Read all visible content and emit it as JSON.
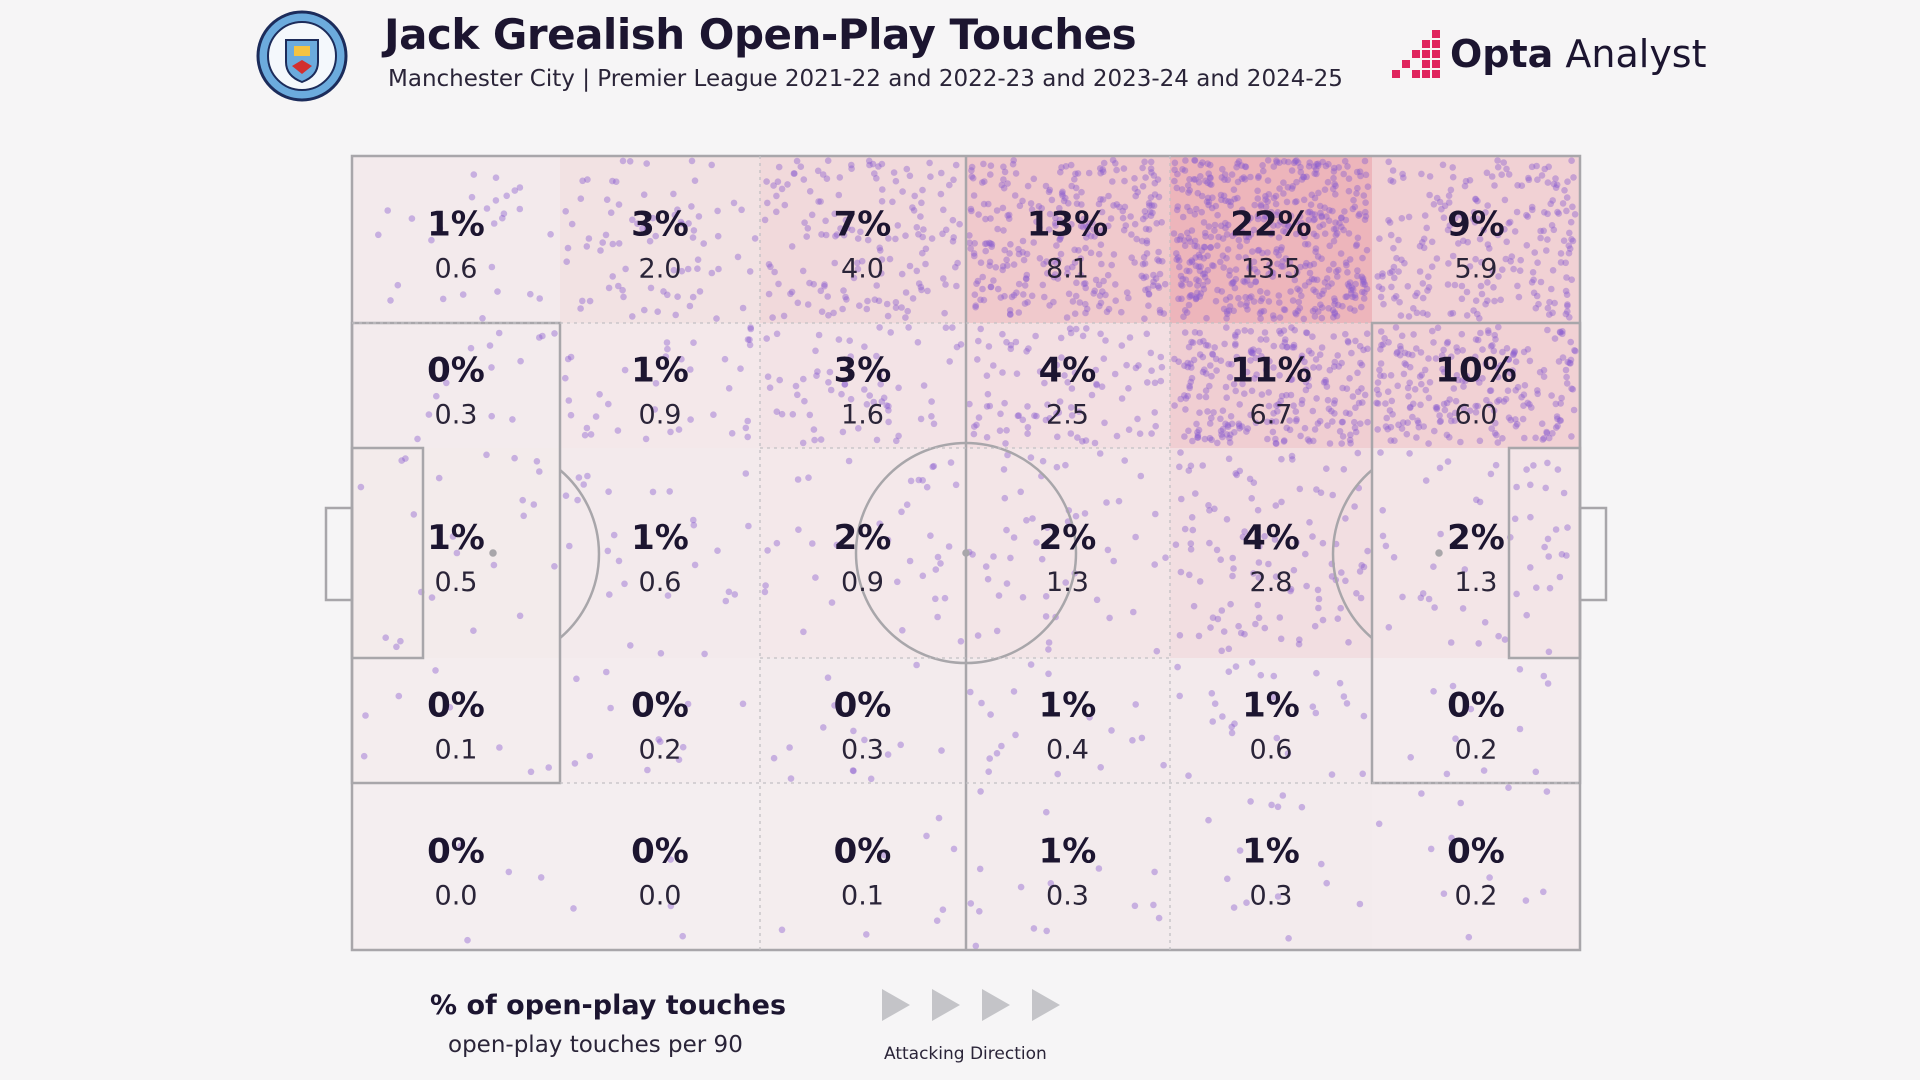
{
  "header": {
    "title": "Jack Grealish Open-Play Touches",
    "subtitle": "Manchester City | Premier League 2021-22 and 2022-23 and 2023-24 and 2024-25",
    "crest_text": "MANCHESTER CITY",
    "brand_bold": "Opta",
    "brand_light": " Analyst"
  },
  "legend": {
    "pct_label": "% of open-play touches",
    "per90_label": "open-play touches per 90",
    "direction_label": "Attacking Direction"
  },
  "colors": {
    "background": "#f6f5f6",
    "pitch_lines": "#a8a6aa",
    "dots": "#8a5cd0",
    "heat_high": "#e88a92",
    "text": "#1c1530",
    "brand_accent": "#e0245e"
  },
  "chart_data": {
    "type": "heatmap",
    "rows_top_to_bottom": 5,
    "cols_left_to_right": 6,
    "attacking_direction": "left-to-right",
    "cells": [
      [
        {
          "pct": "1%",
          "p90": "0.6"
        },
        {
          "pct": "3%",
          "p90": "2.0"
        },
        {
          "pct": "7%",
          "p90": "4.0"
        },
        {
          "pct": "13%",
          "p90": "8.1"
        },
        {
          "pct": "22%",
          "p90": "13.5"
        },
        {
          "pct": "9%",
          "p90": "5.9"
        }
      ],
      [
        {
          "pct": "0%",
          "p90": "0.3"
        },
        {
          "pct": "1%",
          "p90": "0.9"
        },
        {
          "pct": "3%",
          "p90": "1.6"
        },
        {
          "pct": "4%",
          "p90": "2.5"
        },
        {
          "pct": "11%",
          "p90": "6.7"
        },
        {
          "pct": "10%",
          "p90": "6.0"
        }
      ],
      [
        {
          "pct": "1%",
          "p90": "0.5"
        },
        {
          "pct": "1%",
          "p90": "0.6"
        },
        {
          "pct": "2%",
          "p90": "0.9"
        },
        {
          "pct": "2%",
          "p90": "1.3"
        },
        {
          "pct": "4%",
          "p90": "2.8"
        },
        {
          "pct": "2%",
          "p90": "1.3"
        }
      ],
      [
        {
          "pct": "0%",
          "p90": "0.1"
        },
        {
          "pct": "0%",
          "p90": "0.2"
        },
        {
          "pct": "0%",
          "p90": "0.3"
        },
        {
          "pct": "1%",
          "p90": "0.4"
        },
        {
          "pct": "1%",
          "p90": "0.6"
        },
        {
          "pct": "0%",
          "p90": "0.2"
        }
      ],
      [
        {
          "pct": "0%",
          "p90": "0.0"
        },
        {
          "pct": "0%",
          "p90": "0.0"
        },
        {
          "pct": "0%",
          "p90": "0.1"
        },
        {
          "pct": "1%",
          "p90": "0.3"
        },
        {
          "pct": "1%",
          "p90": "0.3"
        },
        {
          "pct": "0%",
          "p90": "0.2"
        }
      ]
    ]
  }
}
